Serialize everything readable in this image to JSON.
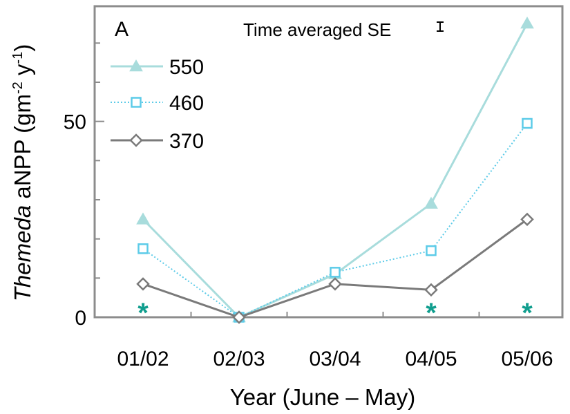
{
  "chart_data": {
    "type": "line",
    "panel_label": "A",
    "xlabel": "Year (June – May)",
    "ylabel": {
      "italic_part": "Themeda",
      "rest": " aNPP (gm",
      "sup1": "-2",
      "mid": " y",
      "sup2": "-1",
      "end": ")"
    },
    "categories": [
      "01/02",
      "02/03",
      "03/04",
      "04/05",
      "05/06"
    ],
    "ylim": [
      0,
      75
    ],
    "yticks_major": [
      0,
      50
    ],
    "yticks_minor": [
      10,
      20,
      30,
      40,
      60,
      70
    ],
    "grid": false,
    "legend_position": "top-left",
    "se_label": "Time averaged SE",
    "series": [
      {
        "name": "550",
        "values": [
          25,
          0,
          11,
          29,
          75
        ],
        "color": "#a8dcdc",
        "marker": "triangle-filled",
        "line_style": "solid"
      },
      {
        "name": "460",
        "values": [
          17.5,
          0,
          11.5,
          17,
          49.5
        ],
        "color": "#5ccbe8",
        "marker": "square-open",
        "line_style": "dotted"
      },
      {
        "name": "370",
        "values": [
          8.5,
          0,
          8.5,
          7,
          25
        ],
        "color": "#7a7a7a",
        "marker": "diamond-open",
        "line_style": "solid"
      }
    ],
    "significance": {
      "symbol": "*",
      "categories": [
        "01/02",
        "04/05",
        "05/06"
      ],
      "color": "#109e8e"
    }
  }
}
